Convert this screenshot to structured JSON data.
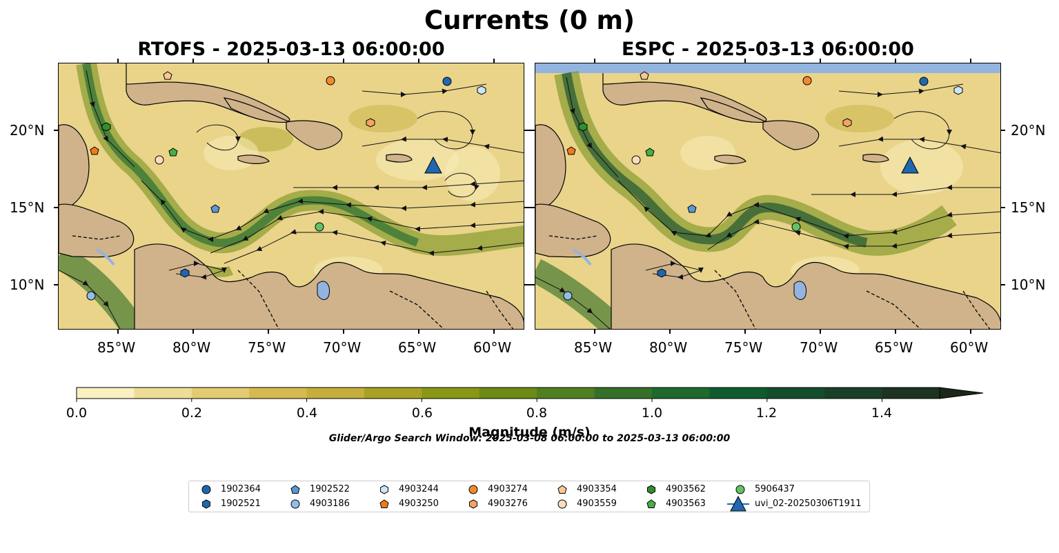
{
  "figure": {
    "title": "Currents (0 m)",
    "left_panel_title": "RTOFS - 2025-03-13 06:00:00",
    "right_panel_title": "ESPC - 2025-03-13 06:00:00",
    "search_window": "Glider/Argo Search Window: 2025-03-08 06:00:00 to 2025-03-13 06:00:00"
  },
  "axes": {
    "lon_ticks": [
      "85°W",
      "80°W",
      "75°W",
      "70°W",
      "65°W",
      "60°W"
    ],
    "lat_ticks": [
      "20°N",
      "15°N",
      "10°N"
    ],
    "lon_range": [
      -89.5,
      -58.5
    ],
    "lat_range": [
      7,
      24.3
    ]
  },
  "colorbar": {
    "label": "Magnitude (m/s)",
    "ticks": [
      "0.0",
      "0.2",
      "0.4",
      "0.6",
      "0.8",
      "1.0",
      "1.2",
      "1.4"
    ],
    "colors": [
      "#f9f1c1",
      "#eedd97",
      "#e2cb72",
      "#d5ba52",
      "#c6ae3c",
      "#a8a124",
      "#8a9714",
      "#6b8b14",
      "#4f7f1f",
      "#347027",
      "#1d6a2c",
      "#0f5b2d",
      "#134d2c",
      "#193f27",
      "#1c3320",
      "#1b2818"
    ],
    "land_color": "#d0b38b",
    "water_color": "#94b4e0"
  },
  "legend": {
    "items": [
      {
        "label": "1902364",
        "marker": "circle",
        "color": "#1f68b0"
      },
      {
        "label": "1902521",
        "marker": "hexagon",
        "color": "#1f68b0"
      },
      {
        "label": "1902522",
        "marker": "pentagon",
        "color": "#5a97d5"
      },
      {
        "label": "4903186",
        "marker": "circle",
        "color": "#8fbfe8"
      },
      {
        "label": "4903244",
        "marker": "hexagon",
        "color": "#cde6f7"
      },
      {
        "label": "4903250",
        "marker": "pentagon",
        "color": "#f07b18"
      },
      {
        "label": "4903274",
        "marker": "circle",
        "color": "#f28a2c"
      },
      {
        "label": "4903276",
        "marker": "hexagon",
        "color": "#f7a264"
      },
      {
        "label": "4903354",
        "marker": "pentagon",
        "color": "#f8c792"
      },
      {
        "label": "4903559",
        "marker": "circle",
        "color": "#fbdcbf"
      },
      {
        "label": "4903562",
        "marker": "hexagon",
        "color": "#2f8f2f"
      },
      {
        "label": "4903563",
        "marker": "pentagon",
        "color": "#46b046"
      },
      {
        "label": "5906437",
        "marker": "circle",
        "color": "#64c264"
      },
      {
        "label": "uvi_02-20250306T1911",
        "marker": "triangle",
        "color": "#1f68b0"
      }
    ]
  },
  "floats": [
    {
      "id": "1902364",
      "lon": -63.0,
      "lat": 23.1
    },
    {
      "id": "1902521",
      "lon": -81.0,
      "lat": 10.8
    },
    {
      "id": "1902522",
      "lon": -78.5,
      "lat": 15.0
    },
    {
      "id": "4903186",
      "lon": -87.0,
      "lat": 9.4
    },
    {
      "id": "4903244",
      "lon": -61.0,
      "lat": 22.6
    },
    {
      "id": "4903250",
      "lon": -87.0,
      "lat": 18.7
    },
    {
      "id": "4903274",
      "lon": -70.9,
      "lat": 23.2
    },
    {
      "id": "4903276",
      "lon": -68.2,
      "lat": 20.5
    },
    {
      "id": "4903354",
      "lon": -81.8,
      "lat": 23.5
    },
    {
      "id": "4903559",
      "lon": -82.3,
      "lat": 18.2
    },
    {
      "id": "4903562",
      "lon": -86.1,
      "lat": 20.2
    },
    {
      "id": "4903563",
      "lon": -81.4,
      "lat": 18.6
    },
    {
      "id": "5906437",
      "lon": -71.7,
      "lat": 13.8
    },
    {
      "id": "uvi_02-20250306T1911",
      "lon": -64.3,
      "lat": 17.8
    }
  ]
}
